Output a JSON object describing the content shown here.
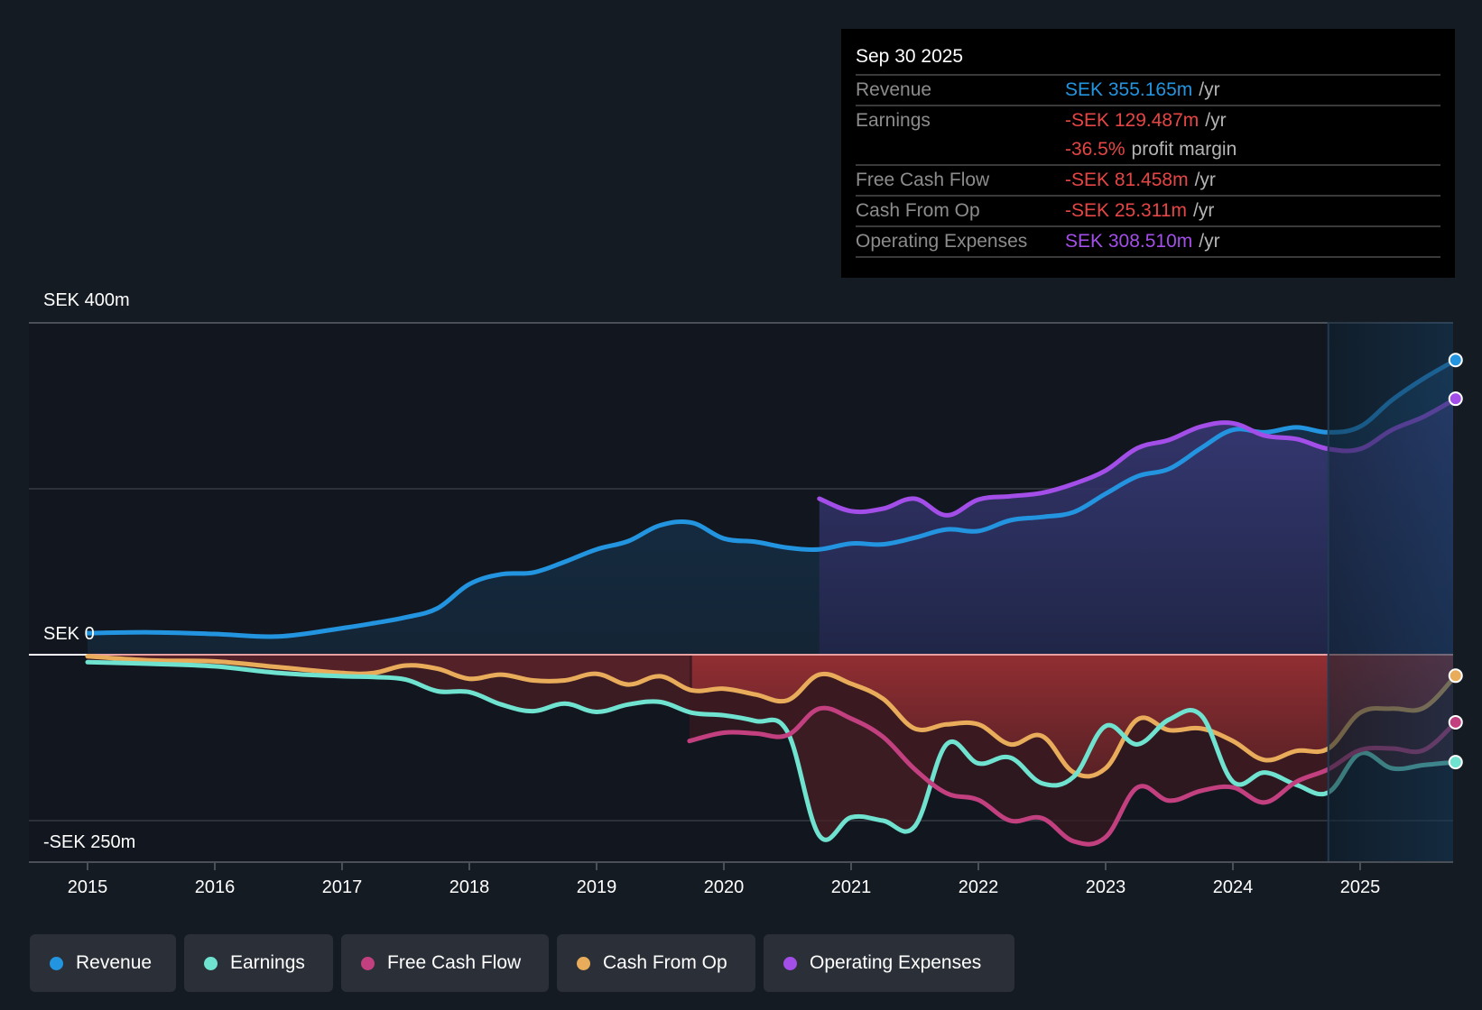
{
  "tooltip": {
    "date": "Sep 30 2025",
    "rows": [
      {
        "label": "Revenue",
        "value": "SEK 355.165m",
        "unit": "/yr",
        "color": "#2394df"
      },
      {
        "label": "Earnings",
        "value": "-SEK 129.487m",
        "unit": "/yr",
        "color": "#e64545"
      },
      {
        "label": "",
        "value": "-36.5%",
        "unit": "profit margin",
        "color": "#e64545"
      },
      {
        "label": "Free Cash Flow",
        "value": "-SEK 81.458m",
        "unit": "/yr",
        "color": "#e64545"
      },
      {
        "label": "Cash From Op",
        "value": "-SEK 25.311m",
        "unit": "/yr",
        "color": "#e64545"
      },
      {
        "label": "Operating Expenses",
        "value": "SEK 308.510m",
        "unit": "/yr",
        "color": "#a34ee8"
      }
    ]
  },
  "legend": [
    {
      "label": "Revenue",
      "color": "#2394df"
    },
    {
      "label": "Earnings",
      "color": "#6fe3d0"
    },
    {
      "label": "Free Cash Flow",
      "color": "#c2407f"
    },
    {
      "label": "Cash From Op",
      "color": "#e8ac5a"
    },
    {
      "label": "Operating Expenses",
      "color": "#a34ee8"
    }
  ],
  "chart_data": {
    "type": "line",
    "title": "",
    "xlabel": "",
    "ylabel": "",
    "currency": "SEK",
    "ylim": [
      -250,
      400
    ],
    "xlim": [
      2014.55,
      2025.79
    ],
    "y_tick_labels": [
      {
        "value": 400,
        "label": "SEK 400m"
      },
      {
        "value": 0,
        "label": "SEK 0"
      },
      {
        "value": -250,
        "label": "-SEK 250m"
      }
    ],
    "gridlines": [
      400,
      200,
      0,
      -200
    ],
    "x_ticks": [
      2015,
      2016,
      2017,
      2018,
      2019,
      2020,
      2021,
      2022,
      2023,
      2024,
      2025
    ],
    "x_tick_labels": [
      "2015",
      "2016",
      "2017",
      "2018",
      "2019",
      "2020",
      "2021",
      "2022",
      "2023",
      "2024",
      "2025"
    ],
    "highlight_range": [
      2024.75,
      2025.75
    ],
    "legend_position": "bottom-left",
    "series": [
      {
        "name": "Revenue",
        "color": "#2394df",
        "x": [
          2015.0,
          2015.5,
          2016.0,
          2016.5,
          2017.0,
          2017.25,
          2017.5,
          2017.75,
          2018.0,
          2018.25,
          2018.5,
          2018.75,
          2019.0,
          2019.25,
          2019.5,
          2019.75,
          2020.0,
          2020.25,
          2020.5,
          2020.75,
          2021.0,
          2021.25,
          2021.5,
          2021.75,
          2022.0,
          2022.25,
          2022.5,
          2022.75,
          2023.0,
          2023.25,
          2023.5,
          2023.75,
          2024.0,
          2024.25,
          2024.5,
          2024.75,
          2025.0,
          2025.25,
          2025.5,
          2025.75
        ],
        "values": [
          26,
          27,
          25,
          22,
          32,
          38,
          45,
          56,
          85,
          97,
          99,
          112,
          127,
          137,
          156,
          159,
          140,
          136,
          129,
          127,
          134,
          133,
          141,
          151,
          149,
          162,
          166,
          172,
          194,
          215,
          224,
          249,
          271,
          268,
          274,
          268,
          275,
          307,
          333,
          355.165
        ]
      },
      {
        "name": "Operating Expenses",
        "color": "#a34ee8",
        "x": [
          2020.75,
          2021.0,
          2021.25,
          2021.5,
          2021.75,
          2022.0,
          2022.25,
          2022.5,
          2022.75,
          2023.0,
          2023.25,
          2023.5,
          2023.75,
          2024.0,
          2024.25,
          2024.5,
          2024.75,
          2025.0,
          2025.25,
          2025.5,
          2025.75
        ],
        "values": [
          188,
          173,
          176,
          188,
          168,
          187,
          191,
          195,
          206,
          222,
          249,
          259,
          275,
          279,
          264,
          260,
          248,
          248,
          271,
          287,
          308.51
        ]
      },
      {
        "name": "Cash From Op",
        "color": "#e8ac5a",
        "x": [
          2015.0,
          2015.5,
          2016.0,
          2016.5,
          2017.0,
          2017.25,
          2017.5,
          2017.75,
          2018.0,
          2018.25,
          2018.5,
          2018.75,
          2019.0,
          2019.25,
          2019.5,
          2019.75,
          2020.0,
          2020.25,
          2020.5,
          2020.75,
          2021.0,
          2021.25,
          2021.5,
          2021.75,
          2022.0,
          2022.25,
          2022.5,
          2022.75,
          2023.0,
          2023.25,
          2023.5,
          2023.75,
          2024.0,
          2024.25,
          2024.5,
          2024.75,
          2025.0,
          2025.25,
          2025.5,
          2025.75
        ],
        "values": [
          -2,
          -7,
          -8,
          -15,
          -22,
          -22,
          -13,
          -17,
          -29,
          -24,
          -31,
          -31,
          -23,
          -36,
          -26,
          -43,
          -41,
          -48,
          -55,
          -24,
          -35,
          -53,
          -89,
          -84,
          -84,
          -108,
          -98,
          -142,
          -137,
          -78,
          -91,
          -89,
          -104,
          -127,
          -116,
          -113,
          -70,
          -65,
          -64,
          -25.311
        ]
      },
      {
        "name": "Free Cash Flow",
        "color": "#c2407f",
        "x": [
          2019.73,
          2020.0,
          2020.25,
          2020.5,
          2020.75,
          2021.0,
          2021.25,
          2021.5,
          2021.75,
          2022.0,
          2022.25,
          2022.5,
          2022.75,
          2023.0,
          2023.25,
          2023.5,
          2023.75,
          2024.0,
          2024.25,
          2024.5,
          2024.75,
          2025.0,
          2025.25,
          2025.5,
          2025.75
        ],
        "values": [
          -104,
          -94,
          -95,
          -97,
          -65,
          -77,
          -99,
          -138,
          -167,
          -175,
          -200,
          -197,
          -225,
          -220,
          -160,
          -176,
          -164,
          -160,
          -178,
          -153,
          -138,
          -115,
          -113,
          -115,
          -81.458
        ]
      },
      {
        "name": "Earnings",
        "color": "#6fe3d0",
        "x": [
          2015.0,
          2015.5,
          2016.0,
          2016.5,
          2017.0,
          2017.25,
          2017.5,
          2017.75,
          2018.0,
          2018.25,
          2018.5,
          2018.75,
          2019.0,
          2019.25,
          2019.5,
          2019.75,
          2020.0,
          2020.25,
          2020.5,
          2020.75,
          2021.0,
          2021.25,
          2021.5,
          2021.75,
          2022.0,
          2022.25,
          2022.5,
          2022.75,
          2023.0,
          2023.25,
          2023.5,
          2023.75,
          2024.0,
          2024.25,
          2024.5,
          2024.75,
          2025.0,
          2025.25,
          2025.5,
          2025.75
        ],
        "values": [
          -9,
          -11,
          -14,
          -22,
          -26,
          -27,
          -30,
          -44,
          -45,
          -60,
          -68,
          -59,
          -69,
          -60,
          -57,
          -70,
          -73,
          -80,
          -93,
          -218,
          -196,
          -200,
          -207,
          -108,
          -131,
          -124,
          -155,
          -147,
          -86,
          -108,
          -78,
          -73,
          -153,
          -142,
          -157,
          -166,
          -119,
          -137,
          -133,
          -129.487
        ]
      }
    ]
  }
}
